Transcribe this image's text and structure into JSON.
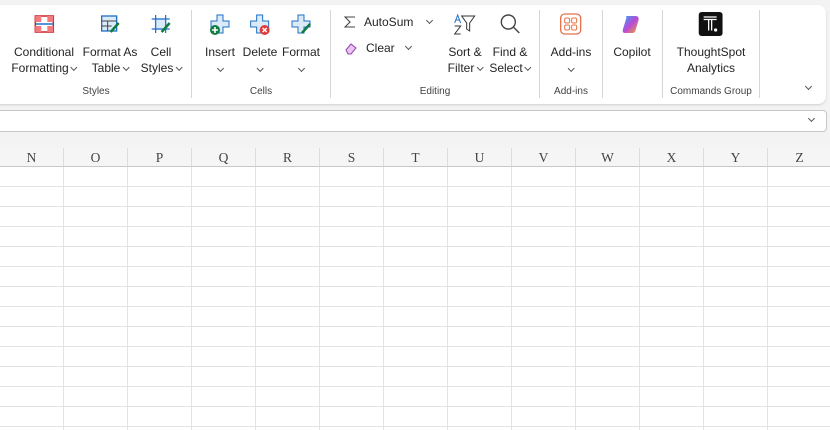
{
  "ribbon": {
    "styles": {
      "group_label": "Styles",
      "conditional_formatting": [
        "Conditional",
        "Formatting"
      ],
      "format_as_table": [
        "Format As",
        "Table"
      ],
      "cell_styles": [
        "Cell",
        "Styles"
      ]
    },
    "cells": {
      "group_label": "Cells",
      "insert": "Insert",
      "delete": "Delete",
      "format": "Format"
    },
    "editing": {
      "group_label": "Editing",
      "autosum": "AutoSum",
      "clear": "Clear",
      "sort_filter": [
        "Sort &",
        "Filter"
      ],
      "find_select": [
        "Find &",
        "Select"
      ]
    },
    "addins": {
      "group_label": "Add-ins",
      "addins": "Add-ins"
    },
    "copilot": {
      "label": "Copilot"
    },
    "commands": {
      "group_label": "Commands Group",
      "thoughtspot": [
        "ThoughtSpot",
        "Analytics"
      ]
    }
  },
  "grid": {
    "columns": [
      "N",
      "O",
      "P",
      "Q",
      "R",
      "S",
      "T",
      "U",
      "V",
      "W",
      "X",
      "Y",
      "Z"
    ]
  },
  "colors": {
    "accent_green": "#107c41",
    "delete_red": "#e03b3b",
    "addins_orange": "#e8714a"
  }
}
